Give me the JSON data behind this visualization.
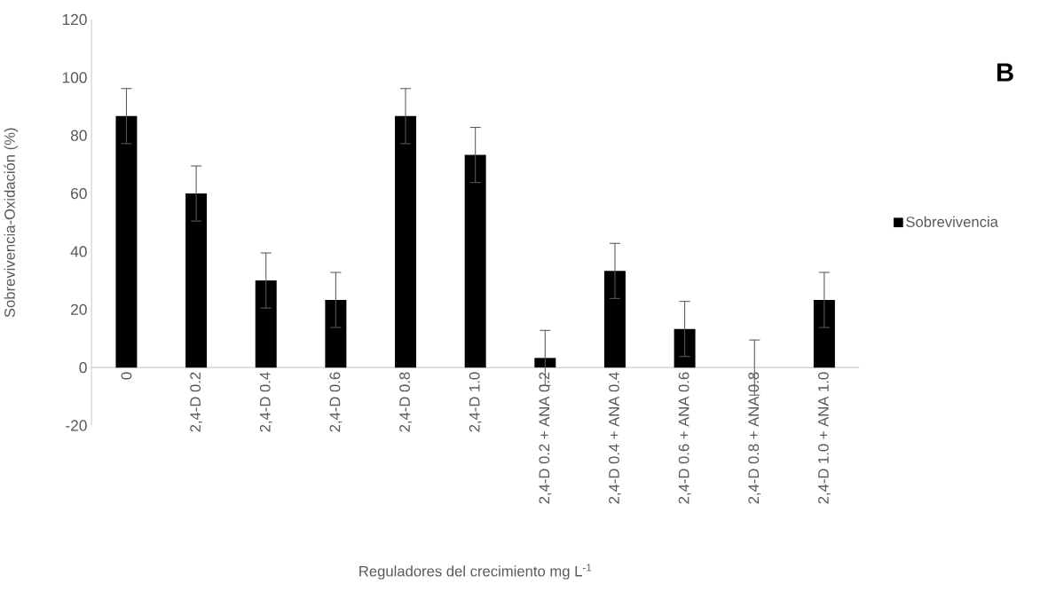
{
  "chart_data": {
    "type": "bar",
    "xlabel": "Reguladores del crecimiento mg L$^{-1}$",
    "ylabel": "Sobrevivencia-Oxidación (%)",
    "annotations": [
      "**B**"
    ],
    "categories": [
      "0",
      "2,4-D 0.2",
      "2,4-D 0.4",
      "2,4-D 0.6",
      "2,4-D 0.8",
      "2,4-D 1.0",
      "2,4-D 0.2 + ANA 0.2",
      "2,4-D 0.4 + ANA 0.4",
      "2,4-D 0.6 + ANA 0.6",
      "2,4-D 0.8 + ANA 0.8",
      "2,4-D 1.0 + ANA 1.0"
    ],
    "series": [
      {
        "name": "Sobrevivencia",
        "color": "#000000",
        "values": [
          86.7,
          60,
          30,
          23.3,
          86.7,
          73.3,
          3.3,
          33.3,
          13.3,
          0,
          23.3
        ],
        "errors": [
          9.5,
          9.5,
          9.5,
          9.5,
          9.5,
          9.5,
          9.5,
          9.5,
          9.5,
          9.5,
          9.5
        ]
      }
    ],
    "ylim": [
      -20,
      120
    ],
    "yticks": [
      -20,
      0,
      20,
      40,
      60,
      80,
      100,
      120
    ],
    "legend": "right"
  }
}
